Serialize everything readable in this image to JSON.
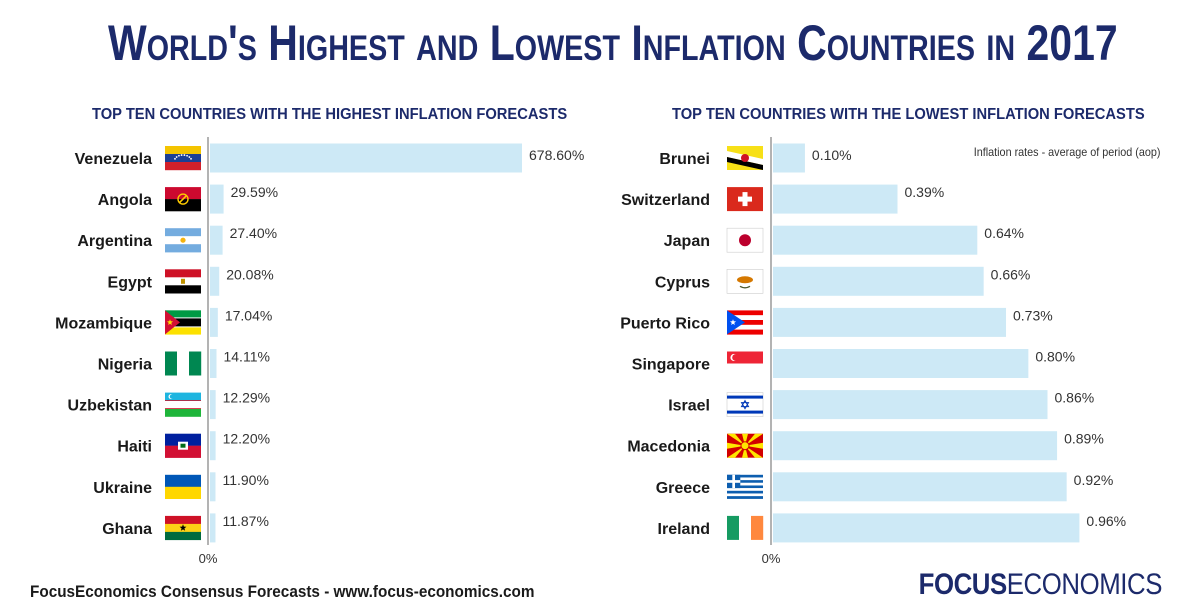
{
  "title": "World's Highest and Lowest Inflation Countries in 2017",
  "note": "Inflation rates - average of period (aop)",
  "footer": {
    "source": "FocusEconomics Consensus Forecasts - www.focus-economics.com",
    "logo_bold": "FOCUS",
    "logo_regular": "ECONOMICS"
  },
  "chart_data": [
    {
      "type": "bar",
      "orientation": "horizontal",
      "title": "TOP TEN COUNTRIES WITH THE HIGHEST INFLATION FORECASTS",
      "categories": [
        "Venezuela",
        "Angola",
        "Argentina",
        "Egypt",
        "Mozambique",
        "Nigeria",
        "Uzbekistan",
        "Haiti",
        "Ukraine",
        "Ghana"
      ],
      "values": [
        678.6,
        29.59,
        27.4,
        20.08,
        17.04,
        14.11,
        12.29,
        12.2,
        11.9,
        11.87
      ],
      "value_labels": [
        "678.60%",
        "29.59%",
        "27.40%",
        "20.08%",
        "17.04%",
        "14.11%",
        "12.29%",
        "12.20%",
        "11.90%",
        "11.87%"
      ],
      "axis_label": "0%",
      "xlim": [
        0,
        678.6
      ],
      "bar_color": "#cde9f6",
      "flags": [
        "venezuela-flag",
        "angola-flag",
        "argentina-flag",
        "egypt-flag",
        "mozambique-flag",
        "nigeria-flag",
        "uzbekistan-flag",
        "haiti-flag",
        "ukraine-flag",
        "ghana-flag"
      ]
    },
    {
      "type": "bar",
      "orientation": "horizontal",
      "title": "TOP TEN COUNTRIES WITH THE LOWEST INFLATION FORECASTS",
      "categories": [
        "Brunei",
        "Switzerland",
        "Japan",
        "Cyprus",
        "Puerto Rico",
        "Singapore",
        "Israel",
        "Macedonia",
        "Greece",
        "Ireland"
      ],
      "values": [
        0.1,
        0.39,
        0.64,
        0.66,
        0.73,
        0.8,
        0.86,
        0.89,
        0.92,
        0.96
      ],
      "value_labels": [
        "0.10%",
        "0.39%",
        "0.64%",
        "0.66%",
        "0.73%",
        "0.80%",
        "0.86%",
        "0.89%",
        "0.92%",
        "0.96%"
      ],
      "axis_label": "0%",
      "xlim": [
        0,
        0.99
      ],
      "bar_color": "#cde9f6",
      "flags": [
        "brunei-flag",
        "switzerland-flag",
        "japan-flag",
        "cyprus-flag",
        "puerto-rico-flag",
        "singapore-flag",
        "israel-flag",
        "macedonia-flag",
        "greece-flag",
        "ireland-flag"
      ]
    }
  ]
}
